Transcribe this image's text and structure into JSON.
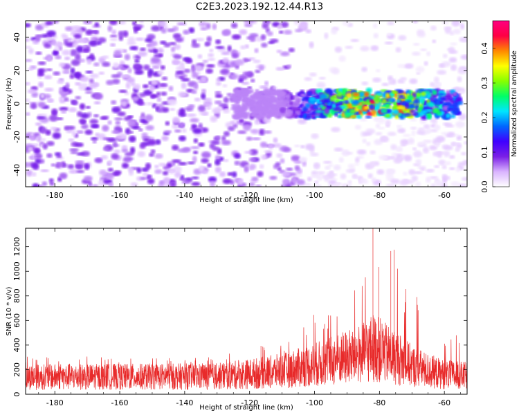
{
  "title": "C2E3.2023.192.12.44.R13",
  "chart_data": [
    {
      "type": "heatmap",
      "xlabel": "Height of straight line (km)",
      "ylabel": "Frequency (Hz)",
      "xlim": [
        -189,
        -53
      ],
      "ylim": [
        -50,
        50
      ],
      "xticks": [
        -180,
        -160,
        -140,
        -120,
        -100,
        -80,
        -60
      ],
      "yticks": [
        -40,
        -20,
        0,
        20,
        40
      ],
      "colorbar": {
        "label": "Normalized spectral amplitude",
        "range": [
          0.0,
          0.48
        ],
        "ticks": [
          0.0,
          0.1,
          0.2,
          0.3,
          0.4
        ],
        "colormap": [
          "#ffffff",
          "#d9b3ff",
          "#7a1fe6",
          "#3f00ff",
          "#0066ff",
          "#00e6ff",
          "#00ff66",
          "#88ff00",
          "#ffff00",
          "#ff8800",
          "#ff0044",
          "#ff0080"
        ]
      },
      "band": {
        "center_hz": 0,
        "half_width_hz": 8,
        "x_start_km": -125,
        "x_end_km": -55,
        "peak_amplitude": 0.42,
        "peak_x_km": -80
      },
      "background_amplitude_left": 0.06,
      "background_amplitude_right": 0.02
    },
    {
      "type": "line",
      "xlabel": "Height of straight line (km)",
      "ylabel": "SNR (10 * v/v)",
      "xlim": [
        -189,
        -53
      ],
      "ylim": [
        0,
        1350
      ],
      "xticks": [
        -180,
        -160,
        -140,
        -120,
        -100,
        -80,
        -60
      ],
      "yticks": [
        0,
        200,
        400,
        600,
        800,
        1000,
        1200
      ],
      "color": "#e82a2a",
      "envelope": {
        "x": [
          -189,
          -130,
          -120,
          -110,
          -100,
          -95,
          -90,
          -85,
          -82,
          -80,
          -78,
          -75,
          -72,
          -70,
          -65,
          -60,
          -53
        ],
        "mean": [
          140,
          145,
          165,
          190,
          240,
          270,
          300,
          330,
          380,
          360,
          330,
          300,
          260,
          230,
          190,
          160,
          150
        ],
        "max": [
          310,
          300,
          380,
          420,
          650,
          700,
          800,
          900,
          1350,
          1000,
          1150,
          1180,
          900,
          850,
          650,
          550,
          450
        ]
      }
    }
  ]
}
